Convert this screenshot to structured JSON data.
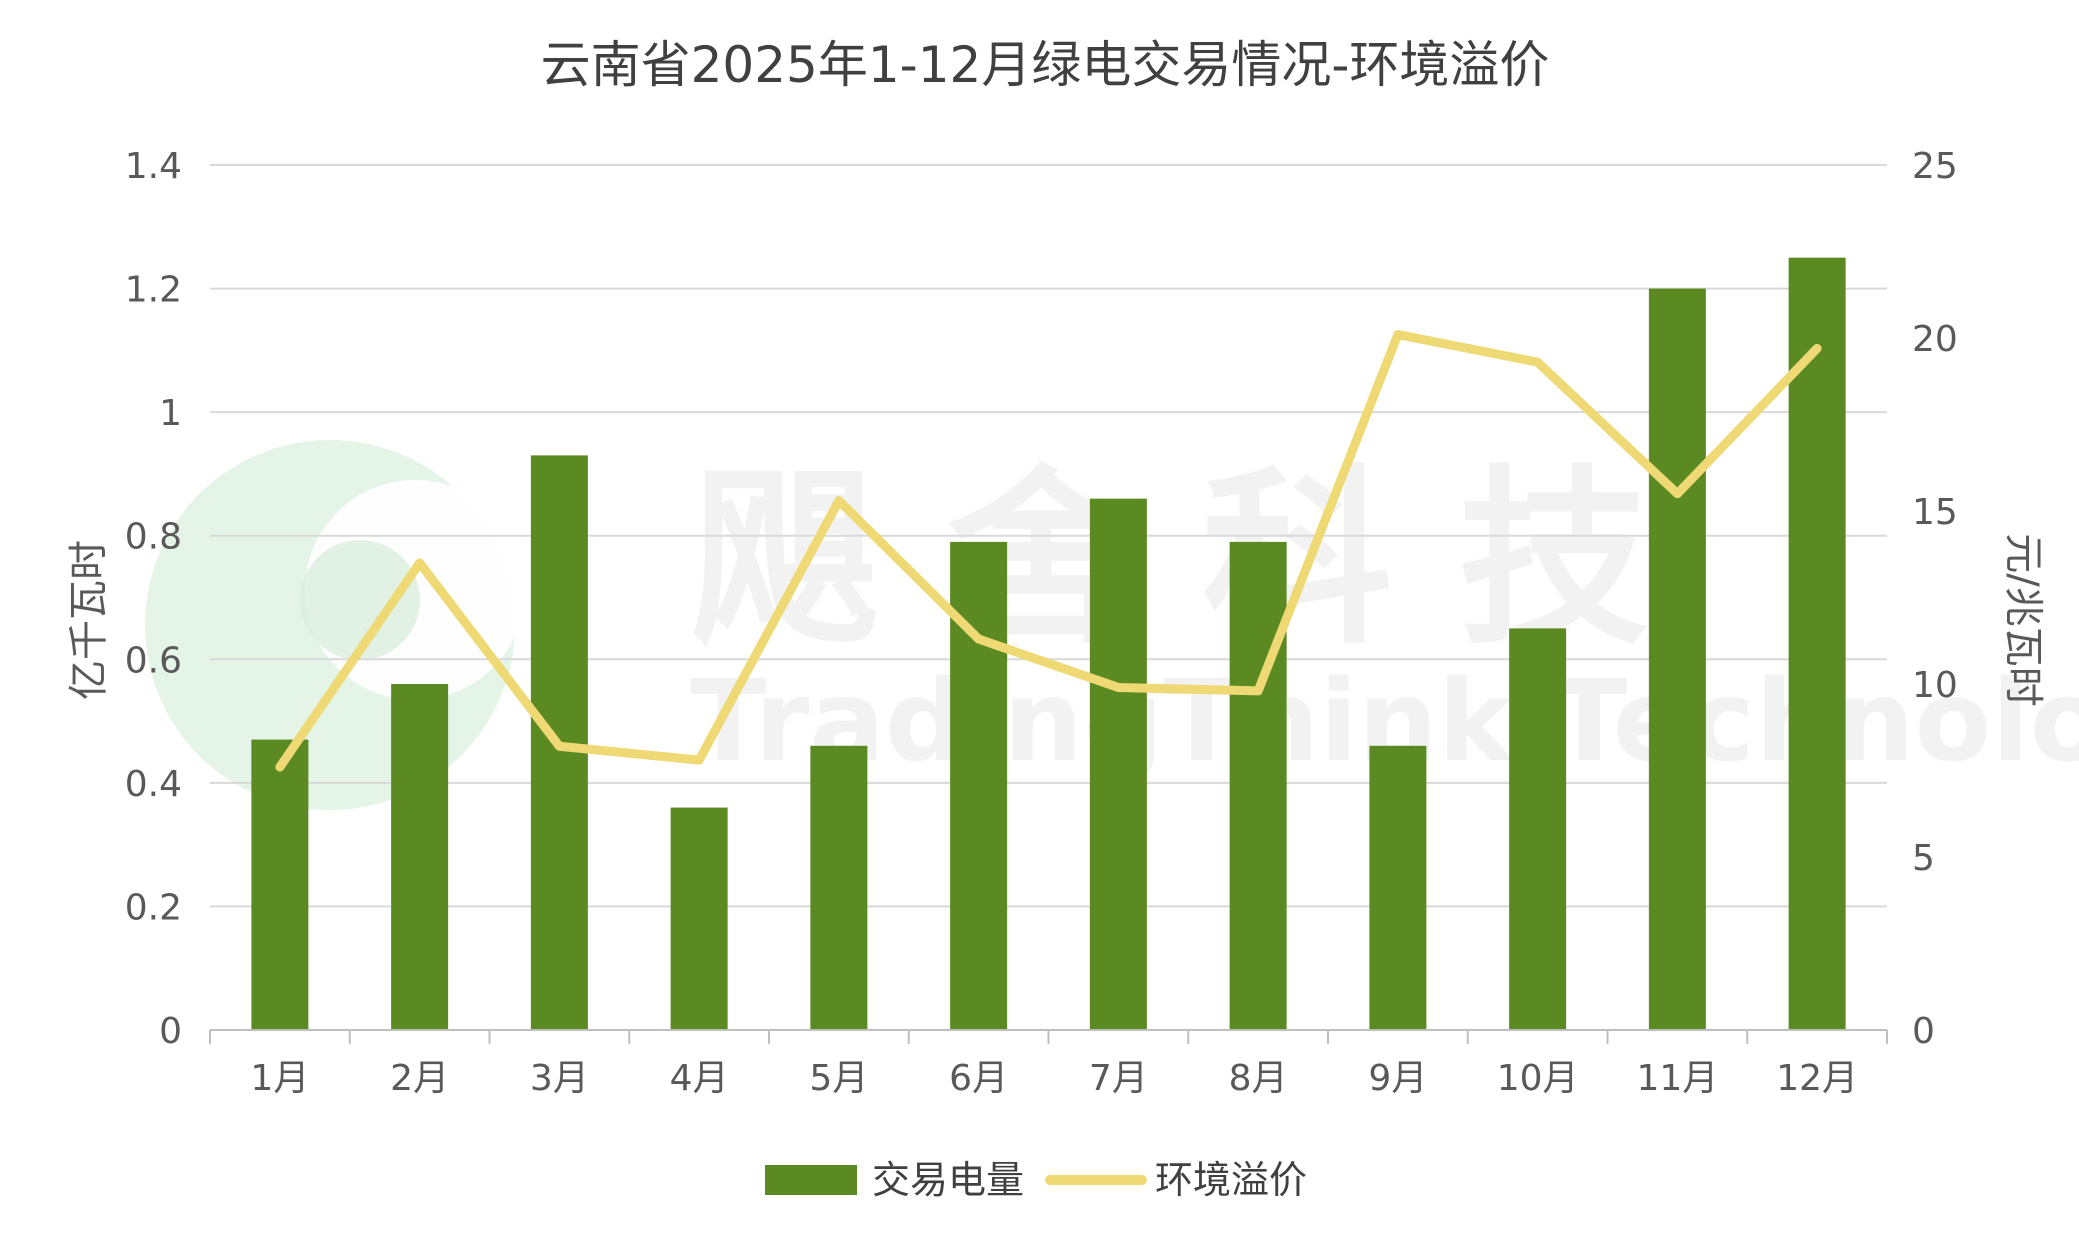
{
  "chart_data": {
    "type": "bar",
    "title": "云南省2025年1-12月绿电交易情况-环境溢价",
    "categories": [
      "1月",
      "2月",
      "3月",
      "4月",
      "5月",
      "6月",
      "7月",
      "8月",
      "9月",
      "10月",
      "11月",
      "12月"
    ],
    "series": [
      {
        "name": "交易电量",
        "type": "bar",
        "axis": "left",
        "color": "#5b8a23",
        "values": [
          0.47,
          0.56,
          0.93,
          0.36,
          0.46,
          0.79,
          0.86,
          0.79,
          0.46,
          0.65,
          1.2,
          1.25
        ]
      },
      {
        "name": "环境溢价",
        "type": "line",
        "axis": "right",
        "color": "#eed975",
        "values": [
          7.6,
          13.5,
          8.2,
          7.8,
          15.3,
          11.3,
          9.9,
          9.8,
          20.1,
          19.3,
          15.5,
          19.7
        ]
      }
    ],
    "y_left": {
      "label": "亿千瓦时",
      "min": 0,
      "max": 1.4,
      "ticks": [
        "0",
        "0.2",
        "0.4",
        "0.6",
        "0.8",
        "1",
        "1.2",
        "1.4"
      ]
    },
    "y_right": {
      "label": "元/兆瓦时",
      "min": 0,
      "max": 25,
      "ticks": [
        "0",
        "5",
        "10",
        "15",
        "20",
        "25"
      ]
    },
    "grid": true,
    "legend": "bottom-center"
  },
  "watermark": {
    "text_cn": "飓 舍 科 技",
    "text_en": "TradingThink Technology",
    "colors": {
      "logo_green": "#d9efdd"
    }
  }
}
